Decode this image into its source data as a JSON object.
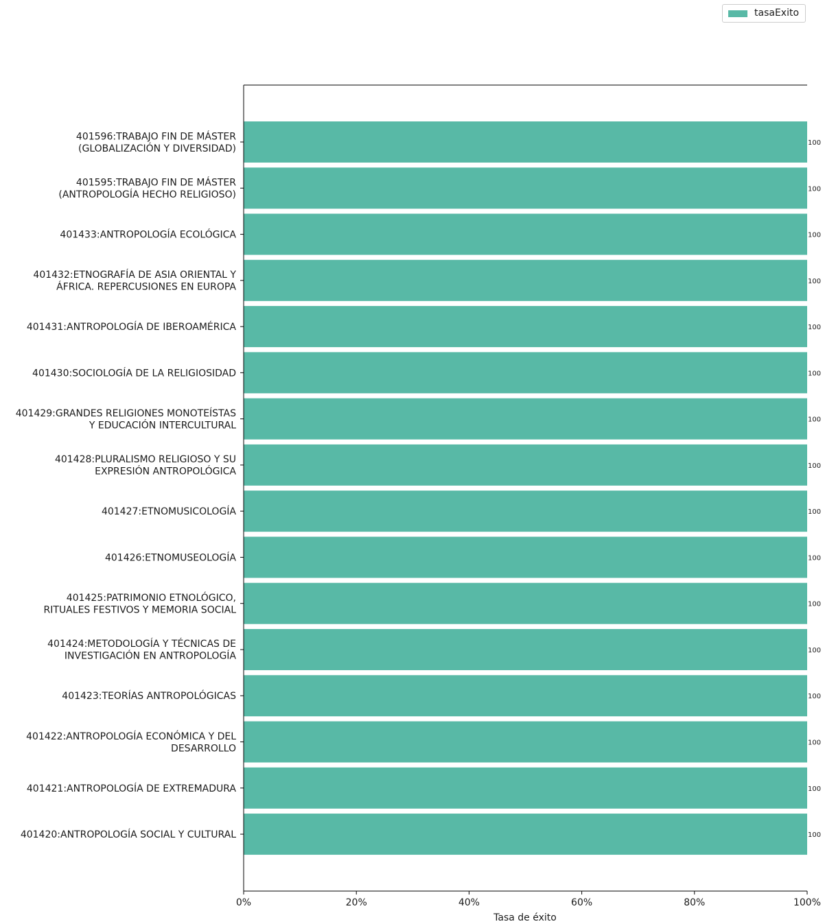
{
  "chart_data": {
    "type": "bar",
    "orientation": "horizontal",
    "categories": [
      [
        "401596:TRABAJO FIN DE MÁSTER",
        "(GLOBALIZACIÓN Y DIVERSIDAD)"
      ],
      [
        "401595:TRABAJO FIN DE MÁSTER",
        "(ANTROPOLOGÍA HECHO RELIGIOSO)"
      ],
      [
        "401433:ANTROPOLOGÍA ECOLÓGICA"
      ],
      [
        "401432:ETNOGRAFÍA DE ASIA ORIENTAL Y",
        "ÁFRICA. REPERCUSIONES EN EUROPA"
      ],
      [
        "401431:ANTROPOLOGÍA DE IBEROAMÉRICA"
      ],
      [
        "401430:SOCIOLOGÍA DE LA RELIGIOSIDAD"
      ],
      [
        "401429:GRANDES RELIGIONES MONOTEÍSTAS",
        "Y EDUCACIÓN INTERCULTURAL"
      ],
      [
        "401428:PLURALISMO RELIGIOSO Y SU",
        "EXPRESIÓN ANTROPOLÓGICA"
      ],
      [
        "401427:ETNOMUSICOLOGÍA"
      ],
      [
        "401426:ETNOMUSEOLOGÍA"
      ],
      [
        "401425:PATRIMONIO ETNOLÓGICO,",
        "RITUALES FESTIVOS Y MEMORIA SOCIAL"
      ],
      [
        "401424:METODOLOGÍA Y TÉCNICAS DE",
        "INVESTIGACIÓN EN ANTROPOLOGÍA"
      ],
      [
        "401423:TEORÍAS ANTROPOLÓGICAS"
      ],
      [
        "401422:ANTROPOLOGÍA ECONÓMICA Y DEL",
        "DESARROLLO"
      ],
      [
        "401421:ANTROPOLOGÍA DE EXTREMADURA"
      ],
      [
        "401420:ANTROPOLOGÍA SOCIAL Y CULTURAL"
      ]
    ],
    "series": [
      {
        "name": "tasaExito",
        "color": "#58b9a6",
        "values": [
          100,
          100,
          100,
          100,
          100,
          100,
          100,
          100,
          100,
          100,
          100,
          100,
          100,
          100,
          100,
          100
        ],
        "data_labels": [
          "100",
          "100",
          "100",
          "100",
          "100",
          "100",
          "100",
          "100",
          "100",
          "100",
          "100",
          "100",
          "100",
          "100",
          "100",
          "100"
        ]
      }
    ],
    "xlabel": "Tasa de éxito",
    "ylabel": "",
    "xlim": [
      0,
      100
    ],
    "xticks": [
      0,
      20,
      40,
      60,
      80,
      100
    ],
    "xtick_labels": [
      "0%",
      "20%",
      "40%",
      "60%",
      "80%",
      "100%"
    ],
    "grid": false,
    "legend_position": "top-right"
  }
}
